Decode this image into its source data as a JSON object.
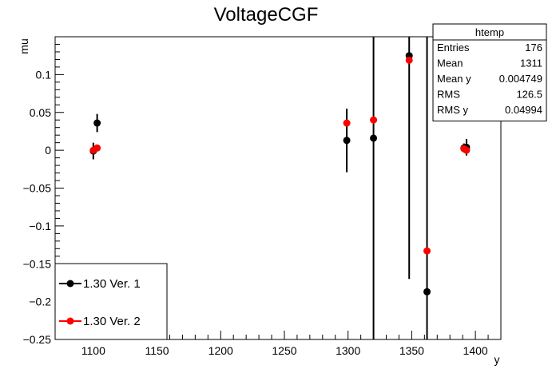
{
  "chart_data": {
    "type": "scatter",
    "title": "VoltageCGF",
    "xlabel": "y",
    "ylabel": "mu",
    "xlim": [
      1070,
      1420
    ],
    "ylim": [
      -0.25,
      0.15
    ],
    "xticks": [
      1100,
      1150,
      1200,
      1250,
      1300,
      1350,
      1400
    ],
    "yticks": [
      -0.25,
      -0.2,
      -0.15,
      -0.1,
      -0.05,
      0,
      0.05,
      0.1
    ],
    "ytick_labels": [
      "−0.25",
      "−0.2",
      "−0.15",
      "−0.1",
      "−0.05",
      "0",
      "0.05",
      "0.1"
    ],
    "grid": false,
    "series": [
      {
        "name": "1.30 Ver. 1",
        "color": "#000000",
        "points": [
          {
            "x": 1100,
            "y": -0.001,
            "yerr": 0.011
          },
          {
            "x": 1103,
            "y": 0.036,
            "yerr": 0.012
          },
          {
            "x": 1299,
            "y": 0.013,
            "yerr": 0.042
          },
          {
            "x": 1320,
            "y": 0.016,
            "yerr": 0.5
          },
          {
            "x": 1348,
            "y": 0.125,
            "yerr": 0.295
          },
          {
            "x": 1362,
            "y": -0.187,
            "yerr": 0.5
          },
          {
            "x": 1391,
            "y": 0.003,
            "yerr": 0.006
          },
          {
            "x": 1393,
            "y": 0.004,
            "yerr": 0.011
          }
        ]
      },
      {
        "name": "1.30 Ver. 2",
        "color": "#ff0000",
        "points": [
          {
            "x": 1100,
            "y": 0.0,
            "yerr": 0
          },
          {
            "x": 1103,
            "y": 0.003,
            "yerr": 0
          },
          {
            "x": 1299,
            "y": 0.036,
            "yerr": 0
          },
          {
            "x": 1320,
            "y": 0.04,
            "yerr": 0
          },
          {
            "x": 1348,
            "y": 0.119,
            "yerr": 0
          },
          {
            "x": 1362,
            "y": -0.133,
            "yerr": 0
          },
          {
            "x": 1391,
            "y": 0.002,
            "yerr": 0
          },
          {
            "x": 1393,
            "y": 0.0,
            "yerr": 0
          }
        ]
      }
    ],
    "stats_box": {
      "title": "htemp",
      "rows": [
        {
          "label": "Entries",
          "value": "176"
        },
        {
          "label": "Mean",
          "value": "1311"
        },
        {
          "label": "Mean y",
          "value": "0.004749"
        },
        {
          "label": "RMS",
          "value": "126.5"
        },
        {
          "label": "RMS y",
          "value": "0.04994"
        }
      ]
    },
    "legend": {
      "placement": "bottom-left",
      "entries": [
        "1.30 Ver. 1",
        "1.30 Ver. 2"
      ]
    }
  }
}
